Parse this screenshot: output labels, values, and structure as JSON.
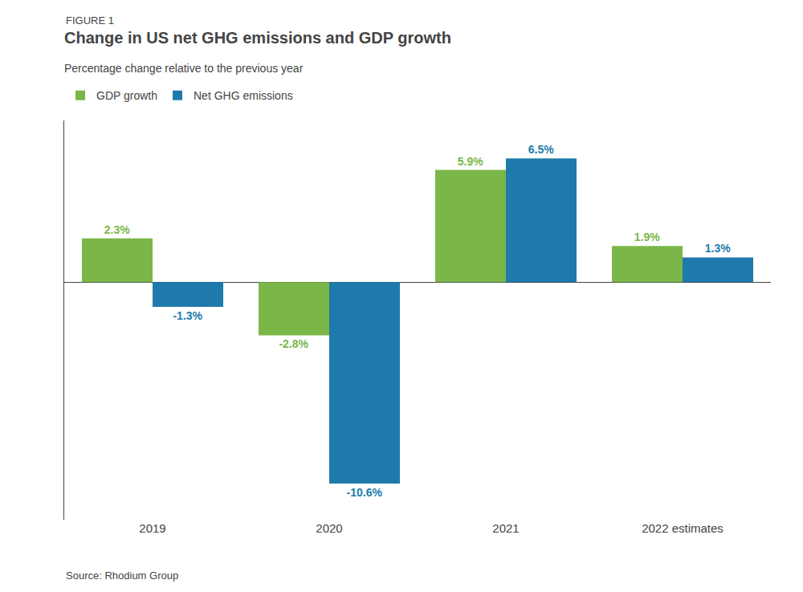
{
  "chart_data": {
    "type": "bar",
    "title": "Change in US net GHG emissions and GDP growth",
    "subtitle": "Percentage change relative to the previous year",
    "annotations": [
      "FIGURE 1",
      "Source: Rhodium Group"
    ],
    "categories": [
      "2019",
      "2020",
      "2021",
      "2022 estimates"
    ],
    "series": [
      {
        "name": "GDP growth",
        "color": "#7ab648",
        "values": [
          2.3,
          -2.8,
          5.9,
          1.9
        ],
        "value_labels": [
          "2.3%",
          "-2.8%",
          "5.9%",
          "1.9%"
        ]
      },
      {
        "name": "Net GHG emissions",
        "color": "#1d7aab",
        "values": [
          -1.3,
          -10.6,
          6.5,
          1.3
        ],
        "value_labels": [
          "-1.3%",
          "-10.6%",
          "6.5%",
          "1.3%"
        ]
      }
    ],
    "ylim": [
      -12.5,
      8.5
    ],
    "data_labels": true,
    "tick_labels": "x",
    "grid": false,
    "legend": "upper left"
  }
}
